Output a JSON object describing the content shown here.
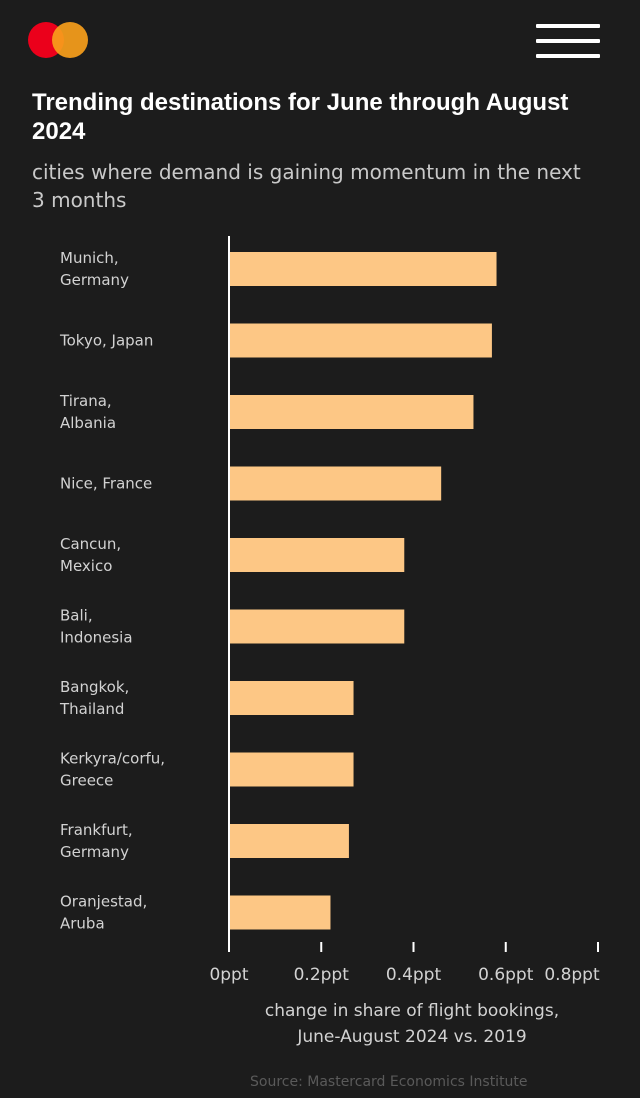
{
  "header": {
    "logo_icon": "mastercard-logo-icon",
    "menu_icon": "hamburger-menu-icon"
  },
  "chart_data": {
    "type": "bar",
    "orientation": "horizontal",
    "title": "Trending destinations for June through August 2024",
    "subtitle": "cities where demand is gaining momentum in the next 3 months",
    "categories": [
      [
        "Munich,",
        "Germany"
      ],
      [
        "Tokyo, Japan"
      ],
      [
        "Tirana,",
        "Albania"
      ],
      [
        "Nice, France"
      ],
      [
        "Cancun,",
        "Mexico"
      ],
      [
        "Bali,",
        "Indonesia"
      ],
      [
        "Bangkok,",
        "Thailand"
      ],
      [
        "Kerkyra/corfu,",
        "Greece"
      ],
      [
        "Frankfurt,",
        "Germany"
      ],
      [
        "Oranjestad,",
        "Aruba"
      ]
    ],
    "values": [
      0.58,
      0.57,
      0.53,
      0.46,
      0.38,
      0.38,
      0.27,
      0.27,
      0.26,
      0.22
    ],
    "xlim": [
      0,
      0.8
    ],
    "xticks": [
      0,
      0.2,
      0.4,
      0.6,
      0.8
    ],
    "xtick_labels": [
      "0ppt",
      "0.2ppt",
      "0.4ppt",
      "0.6ppt",
      "0.8ppt"
    ],
    "xlabel_lines": [
      "change in share of flight bookings,",
      "June-August 2024 vs. 2019"
    ],
    "source": "Source: Mastercard Economics Institute",
    "bar_color": "#fdc785",
    "background": "#1c1c1c",
    "grid": false
  }
}
